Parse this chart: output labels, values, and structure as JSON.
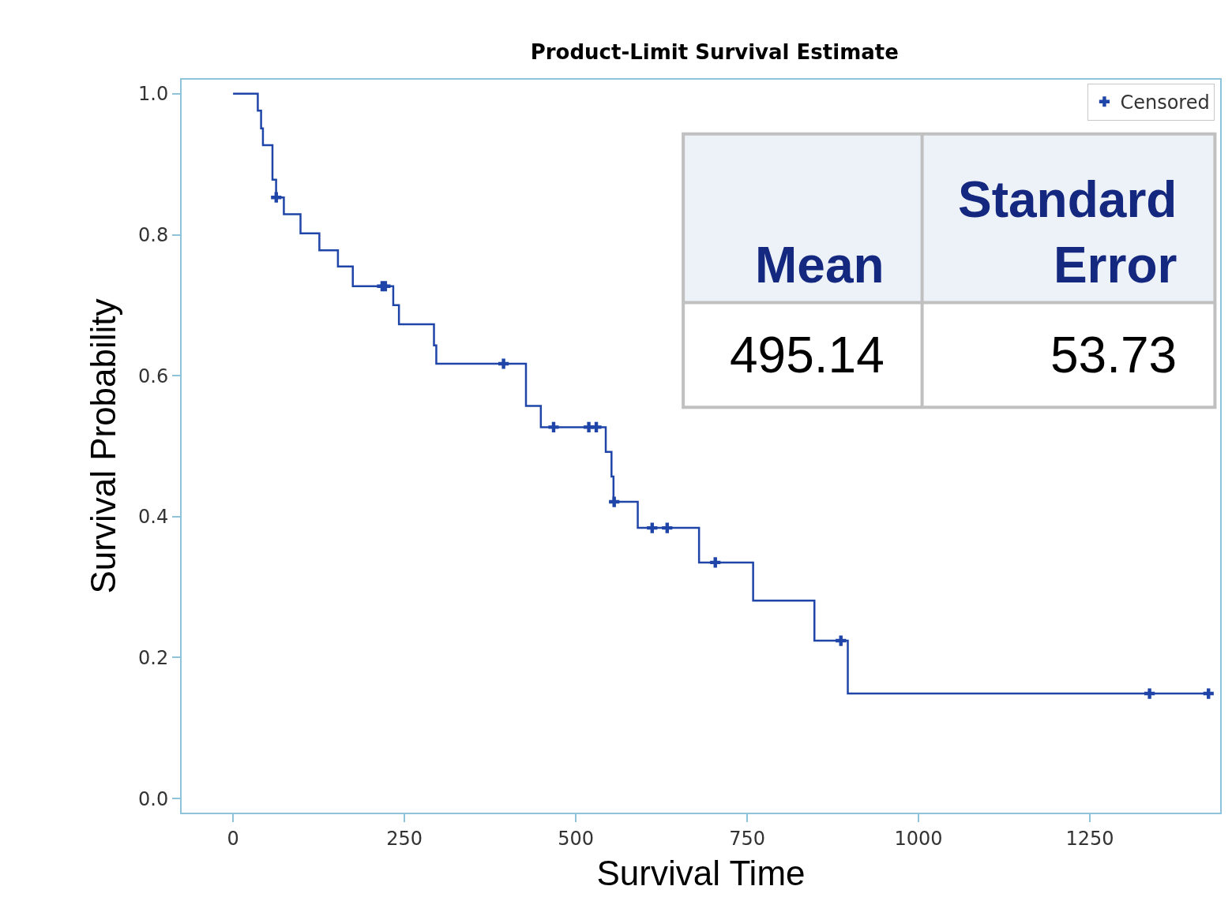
{
  "chart_data": {
    "type": "step",
    "title": "Product-Limit Survival Estimate",
    "xlabel": "Survival Time",
    "ylabel": "Survival Probability",
    "xlim": [
      -75,
      1440
    ],
    "xticks": [
      0,
      250,
      500,
      750,
      1000,
      1250
    ],
    "ylim": [
      -0.02,
      1.02
    ],
    "yticks": [
      {
        "value": 0,
        "label": "0.0"
      },
      {
        "value": 0.2,
        "label": "0.2"
      },
      {
        "value": 0.4,
        "label": "0.4"
      },
      {
        "value": 0.6,
        "label": "0.6"
      },
      {
        "value": 0.8,
        "label": "0.8"
      },
      {
        "value": 1,
        "label": "1.0"
      }
    ],
    "grid": false,
    "legend": "top right",
    "series": [
      {
        "color": "#1f45a8",
        "x": [
          0,
          36.1,
          40.9,
          43.6,
          57.5,
          62.8,
          74.1,
          98.4,
          125.9,
          153,
          174.7,
          233.7,
          242,
          293.1,
          296.5,
          427.3,
          449,
          543.7,
          552.1,
          555,
          590.4,
          679.8,
          758.7,
          848.1,
          896.8,
          1423
        ],
        "values": [
          1.0,
          0.976,
          0.951,
          0.927,
          0.878,
          0.853,
          0.829,
          0.802,
          0.778,
          0.755,
          0.727,
          0.7,
          0.673,
          0.643,
          0.617,
          0.557,
          0.527,
          0.492,
          0.457,
          0.421,
          0.384,
          0.335,
          0.281,
          0.224,
          0.149,
          0.149
        ]
      },
      {
        "type": "scatter",
        "name": "Censored",
        "marker": "cross",
        "color": "#1f45a8",
        "x": [
          63,
          217.6,
          222.1,
          394.6,
          467.6,
          519,
          529.9,
          556,
          611.4,
          633.3,
          703.5,
          886.7,
          1337,
          1423
        ],
        "values": [
          0.853,
          0.727,
          0.727,
          0.617,
          0.527,
          0.527,
          0.527,
          0.421,
          0.384,
          0.384,
          0.335,
          0.224,
          0.149,
          0.149
        ]
      }
    ],
    "annotations": [
      "Mean",
      "Standard\nError",
      "495.14",
      "53.73"
    ]
  }
}
